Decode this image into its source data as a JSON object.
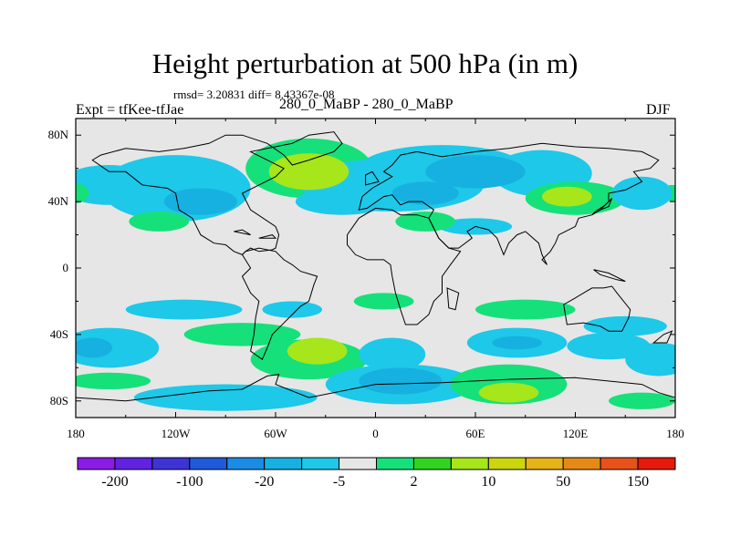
{
  "header": {
    "title": "Height perturbation at 500 hPa (in m)",
    "stats": "rmsd= 3.20831  diff= 8.43367e-08",
    "left_label": "Expt = tfKee-tfJae",
    "center_label": "280_0_MaBP - 280_0_MaBP",
    "right_label": "DJF"
  },
  "chart_data": {
    "type": "heatmap",
    "projection": "cylindrical-equidistant",
    "xlim": [
      -180,
      180
    ],
    "ylim": [
      -90,
      90
    ],
    "x_ticks": [
      {
        "value": -180,
        "label": "180"
      },
      {
        "value": -120,
        "label": "120W"
      },
      {
        "value": -60,
        "label": "60W"
      },
      {
        "value": 0,
        "label": "0"
      },
      {
        "value": 60,
        "label": "60E"
      },
      {
        "value": 120,
        "label": "120E"
      },
      {
        "value": 180,
        "label": "180"
      }
    ],
    "y_ticks": [
      {
        "value": 80,
        "label": "80N"
      },
      {
        "value": 40,
        "label": "40N"
      },
      {
        "value": 0,
        "label": "0"
      },
      {
        "value": -40,
        "label": "40S"
      },
      {
        "value": -80,
        "label": "80S"
      }
    ],
    "colorbar": {
      "colors": [
        "#8a1ce6",
        "#6222e2",
        "#3d34d6",
        "#1f5ad9",
        "#1a8ce6",
        "#16b1e0",
        "#1ec8e8",
        "#e6e6e6",
        "#16e07a",
        "#33d41f",
        "#a6e61a",
        "#ccd60c",
        "#e6b216",
        "#e68a16",
        "#e6521a",
        "#e61a0c"
      ],
      "labels": [
        {
          "boundary": 1,
          "text": "-200"
        },
        {
          "boundary": 3,
          "text": "-100"
        },
        {
          "boundary": 5,
          "text": "-20"
        },
        {
          "boundary": 7,
          "text": "-5"
        },
        {
          "boundary": 9,
          "text": "2"
        },
        {
          "boundary": 11,
          "text": "10"
        },
        {
          "boundary": 13,
          "text": "50"
        },
        {
          "boundary": 15,
          "text": "150"
        }
      ]
    },
    "background_color": "#e6e6e6",
    "anomalies": [
      {
        "lon": -160,
        "lat": 50,
        "rx": 30,
        "ry": 12,
        "level": -1
      },
      {
        "lon": -120,
        "lat": 48,
        "rx": 45,
        "ry": 20,
        "level": -1
      },
      {
        "lon": -105,
        "lat": 40,
        "rx": 22,
        "ry": 8,
        "level": -2
      },
      {
        "lon": -40,
        "lat": 60,
        "rx": 38,
        "ry": 18,
        "level": 1
      },
      {
        "lon": -40,
        "lat": 58,
        "rx": 24,
        "ry": 11,
        "level": 2
      },
      {
        "lon": -20,
        "lat": 40,
        "rx": 28,
        "ry": 8,
        "level": -1
      },
      {
        "lon": 10,
        "lat": 50,
        "rx": 55,
        "ry": 16,
        "level": -1
      },
      {
        "lon": 40,
        "lat": 60,
        "rx": 50,
        "ry": 14,
        "level": -1
      },
      {
        "lon": 30,
        "lat": 45,
        "rx": 20,
        "ry": 7,
        "level": -2
      },
      {
        "lon": 60,
        "lat": 58,
        "rx": 30,
        "ry": 10,
        "level": -2
      },
      {
        "lon": 100,
        "lat": 57,
        "rx": 30,
        "ry": 14,
        "level": -1
      },
      {
        "lon": 120,
        "lat": 42,
        "rx": 30,
        "ry": 10,
        "level": 1
      },
      {
        "lon": 115,
        "lat": 43,
        "rx": 15,
        "ry": 6,
        "level": 2
      },
      {
        "lon": 60,
        "lat": 25,
        "rx": 22,
        "ry": 5,
        "level": -1
      },
      {
        "lon": 30,
        "lat": 28,
        "rx": 18,
        "ry": 6,
        "level": 1
      },
      {
        "lon": -130,
        "lat": 28,
        "rx": 18,
        "ry": 6,
        "level": 1
      },
      {
        "lon": -180,
        "lat": 45,
        "rx": 8,
        "ry": 6,
        "level": 1
      },
      {
        "lon": 178,
        "lat": 45,
        "rx": 6,
        "ry": 5,
        "level": 1
      },
      {
        "lon": 160,
        "lat": 45,
        "rx": 18,
        "ry": 10,
        "level": -1
      },
      {
        "lon": -115,
        "lat": -25,
        "rx": 35,
        "ry": 6,
        "level": -1
      },
      {
        "lon": -50,
        "lat": -25,
        "rx": 18,
        "ry": 5,
        "level": -1
      },
      {
        "lon": 5,
        "lat": -20,
        "rx": 18,
        "ry": 5,
        "level": 1
      },
      {
        "lon": 90,
        "lat": -25,
        "rx": 30,
        "ry": 6,
        "level": 1
      },
      {
        "lon": 150,
        "lat": -35,
        "rx": 25,
        "ry": 6,
        "level": -1
      },
      {
        "lon": -80,
        "lat": -40,
        "rx": 35,
        "ry": 7,
        "level": 1
      },
      {
        "lon": -160,
        "lat": -48,
        "rx": 30,
        "ry": 12,
        "level": -1
      },
      {
        "lon": -170,
        "lat": -48,
        "rx": 12,
        "ry": 6,
        "level": -2
      },
      {
        "lon": -160,
        "lat": -68,
        "rx": 25,
        "ry": 5,
        "level": 1
      },
      {
        "lon": -40,
        "lat": -55,
        "rx": 35,
        "ry": 12,
        "level": 1
      },
      {
        "lon": -35,
        "lat": -50,
        "rx": 18,
        "ry": 8,
        "level": 2
      },
      {
        "lon": 10,
        "lat": -52,
        "rx": 20,
        "ry": 10,
        "level": -1
      },
      {
        "lon": 15,
        "lat": -70,
        "rx": 45,
        "ry": 12,
        "level": -1
      },
      {
        "lon": 15,
        "lat": -68,
        "rx": 25,
        "ry": 8,
        "level": -2
      },
      {
        "lon": 80,
        "lat": -70,
        "rx": 35,
        "ry": 12,
        "level": 1
      },
      {
        "lon": 80,
        "lat": -75,
        "rx": 18,
        "ry": 6,
        "level": 2
      },
      {
        "lon": 85,
        "lat": -45,
        "rx": 30,
        "ry": 9,
        "level": -1
      },
      {
        "lon": 85,
        "lat": -45,
        "rx": 15,
        "ry": 4,
        "level": -2
      },
      {
        "lon": 140,
        "lat": -47,
        "rx": 25,
        "ry": 8,
        "level": -1
      },
      {
        "lon": 170,
        "lat": -55,
        "rx": 20,
        "ry": 10,
        "level": -1
      },
      {
        "lon": -90,
        "lat": -78,
        "rx": 55,
        "ry": 8,
        "level": -1
      },
      {
        "lon": 160,
        "lat": -80,
        "rx": 20,
        "ry": 5,
        "level": 1
      }
    ],
    "coastlines": [
      [
        [
          -140,
          50
        ],
        [
          -125,
          48
        ],
        [
          -120,
          45
        ],
        [
          -118,
          35
        ],
        [
          -110,
          30
        ],
        [
          -105,
          20
        ],
        [
          -97,
          15
        ],
        [
          -90,
          14
        ],
        [
          -85,
          10
        ],
        [
          -80,
          8
        ],
        [
          -78,
          10
        ],
        [
          -75,
          12
        ],
        [
          -70,
          10
        ],
        [
          -62,
          11
        ],
        [
          -60,
          12
        ],
        [
          -58,
          20
        ],
        [
          -60,
          25
        ],
        [
          -75,
          35
        ],
        [
          -80,
          45
        ],
        [
          -70,
          50
        ],
        [
          -60,
          55
        ],
        [
          -55,
          60
        ],
        [
          -65,
          65
        ],
        [
          -75,
          70
        ],
        [
          -50,
          75
        ],
        [
          -40,
          80
        ],
        [
          -25,
          82
        ],
        [
          -20,
          75
        ],
        [
          -25,
          70
        ],
        [
          -40,
          65
        ],
        [
          -50,
          62
        ],
        [
          -55,
          68
        ],
        [
          -65,
          75
        ],
        [
          -80,
          80
        ],
        [
          -90,
          80
        ],
        [
          -100,
          75
        ],
        [
          -115,
          72
        ],
        [
          -130,
          70
        ],
        [
          -150,
          72
        ],
        [
          -165,
          68
        ],
        [
          -170,
          65
        ],
        [
          -160,
          58
        ],
        [
          -150,
          58
        ],
        [
          -140,
          50
        ]
      ],
      [
        [
          -80,
          8
        ],
        [
          -75,
          0
        ],
        [
          -80,
          -5
        ],
        [
          -75,
          -15
        ],
        [
          -70,
          -20
        ],
        [
          -72,
          -30
        ],
        [
          -73,
          -40
        ],
        [
          -75,
          -50
        ],
        [
          -68,
          -55
        ],
        [
          -65,
          -48
        ],
        [
          -62,
          -40
        ],
        [
          -57,
          -35
        ],
        [
          -50,
          -28
        ],
        [
          -45,
          -23
        ],
        [
          -40,
          -20
        ],
        [
          -37,
          -10
        ],
        [
          -35,
          -5
        ],
        [
          -45,
          -2
        ],
        [
          -50,
          2
        ],
        [
          -55,
          5
        ],
        [
          -60,
          10
        ],
        [
          -70,
          12
        ],
        [
          -78,
          10
        ],
        [
          -80,
          8
        ]
      ],
      [
        [
          -10,
          35
        ],
        [
          -8,
          43
        ],
        [
          -2,
          48
        ],
        [
          5,
          52
        ],
        [
          10,
          55
        ],
        [
          5,
          58
        ],
        [
          10,
          62
        ],
        [
          15,
          68
        ],
        [
          25,
          70
        ],
        [
          40,
          67
        ],
        [
          60,
          70
        ],
        [
          80,
          72
        ],
        [
          100,
          75
        ],
        [
          120,
          73
        ],
        [
          140,
          72
        ],
        [
          160,
          70
        ],
        [
          170,
          65
        ],
        [
          165,
          60
        ],
        [
          155,
          58
        ],
        [
          160,
          52
        ],
        [
          150,
          47
        ],
        [
          140,
          45
        ],
        [
          140,
          40
        ],
        [
          135,
          35
        ],
        [
          130,
          32
        ],
        [
          122,
          30
        ],
        [
          120,
          25
        ],
        [
          110,
          20
        ],
        [
          108,
          15
        ],
        [
          105,
          10
        ],
        [
          100,
          5
        ],
        [
          103,
          2
        ],
        [
          100,
          8
        ],
        [
          98,
          15
        ],
        [
          90,
          22
        ],
        [
          85,
          20
        ],
        [
          80,
          15
        ],
        [
          77,
          8
        ],
        [
          73,
          18
        ],
        [
          68,
          23
        ],
        [
          60,
          25
        ],
        [
          55,
          22
        ],
        [
          58,
          18
        ],
        [
          50,
          12
        ],
        [
          44,
          12
        ],
        [
          38,
          18
        ],
        [
          32,
          30
        ],
        [
          35,
          35
        ],
        [
          28,
          40
        ],
        [
          20,
          40
        ],
        [
          15,
          38
        ],
        [
          10,
          44
        ],
        [
          5,
          43
        ],
        [
          -5,
          36
        ],
        [
          -10,
          35
        ]
      ],
      [
        [
          -17,
          20
        ],
        [
          -17,
          14
        ],
        [
          -12,
          8
        ],
        [
          -5,
          5
        ],
        [
          5,
          5
        ],
        [
          9,
          2
        ],
        [
          10,
          -5
        ],
        [
          12,
          -15
        ],
        [
          15,
          -25
        ],
        [
          18,
          -34
        ],
        [
          25,
          -34
        ],
        [
          32,
          -28
        ],
        [
          35,
          -20
        ],
        [
          40,
          -15
        ],
        [
          40,
          -5
        ],
        [
          45,
          2
        ],
        [
          51,
          10
        ],
        [
          44,
          12
        ],
        [
          38,
          18
        ],
        [
          32,
          30
        ],
        [
          25,
          32
        ],
        [
          15,
          32
        ],
        [
          10,
          35
        ],
        [
          0,
          36
        ],
        [
          -10,
          30
        ],
        [
          -17,
          20
        ]
      ],
      [
        [
          43,
          -12
        ],
        [
          50,
          -15
        ],
        [
          48,
          -25
        ],
        [
          44,
          -24
        ],
        [
          43,
          -12
        ]
      ],
      [
        [
          113,
          -22
        ],
        [
          115,
          -34
        ],
        [
          125,
          -33
        ],
        [
          135,
          -35
        ],
        [
          140,
          -38
        ],
        [
          148,
          -38
        ],
        [
          152,
          -30
        ],
        [
          153,
          -25
        ],
        [
          145,
          -15
        ],
        [
          142,
          -11
        ],
        [
          137,
          -12
        ],
        [
          130,
          -12
        ],
        [
          125,
          -15
        ],
        [
          120,
          -18
        ],
        [
          113,
          -22
        ]
      ],
      [
        [
          131,
          -1
        ],
        [
          140,
          -3
        ],
        [
          150,
          -8
        ],
        [
          145,
          -7
        ],
        [
          135,
          -4
        ],
        [
          131,
          -1
        ]
      ],
      [
        [
          167,
          -45
        ],
        [
          173,
          -40
        ],
        [
          178,
          -38
        ],
        [
          175,
          -45
        ],
        [
          167,
          -45
        ]
      ],
      [
        [
          -6,
          50
        ],
        [
          2,
          52
        ],
        [
          -2,
          58
        ],
        [
          -6,
          56
        ],
        [
          -6,
          50
        ]
      ],
      [
        [
          130,
          32
        ],
        [
          135,
          35
        ],
        [
          140,
          37
        ],
        [
          142,
          42
        ],
        [
          138,
          38
        ],
        [
          132,
          34
        ],
        [
          130,
          32
        ]
      ],
      [
        [
          -180,
          -78
        ],
        [
          -150,
          -80
        ],
        [
          -100,
          -74
        ],
        [
          -80,
          -73
        ],
        [
          -65,
          -65
        ],
        [
          -58,
          -64
        ],
        [
          -60,
          -70
        ],
        [
          -40,
          -78
        ],
        [
          0,
          -70
        ],
        [
          40,
          -69
        ],
        [
          80,
          -67
        ],
        [
          120,
          -66
        ],
        [
          160,
          -70
        ],
        [
          170,
          -75
        ],
        [
          180,
          -78
        ],
        [
          180,
          -90
        ],
        [
          -180,
          -90
        ],
        [
          -180,
          -78
        ]
      ],
      [
        [
          -70,
          18
        ],
        [
          -60,
          18
        ],
        [
          -62,
          20
        ],
        [
          -70,
          18
        ]
      ],
      [
        [
          -85,
          22
        ],
        [
          -75,
          20
        ],
        [
          -80,
          23
        ],
        [
          -85,
          22
        ]
      ]
    ]
  }
}
